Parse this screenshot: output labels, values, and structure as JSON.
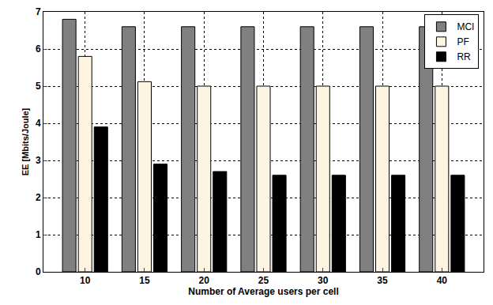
{
  "chart_data": {
    "type": "bar",
    "x_label": "Number of Average users per cell",
    "y_label": "EE [Mbits/Joule]",
    "categories": [
      "10",
      "15",
      "20",
      "25",
      "30",
      "35",
      "40"
    ],
    "series": [
      {
        "name": "MCI",
        "color": "#808080",
        "values": [
          6.8,
          6.6,
          6.6,
          6.6,
          6.6,
          6.6,
          6.6
        ]
      },
      {
        "name": "PF",
        "color": "#fdf5e1",
        "values": [
          5.8,
          5.12,
          5.0,
          5.0,
          5.0,
          5.0,
          5.0
        ]
      },
      {
        "name": "RR",
        "color": "#000000",
        "values": [
          3.9,
          2.9,
          2.7,
          2.6,
          2.6,
          2.6,
          2.6
        ]
      }
    ],
    "ylim": [
      0,
      7
    ],
    "yticks": [
      0,
      1,
      2,
      3,
      4,
      5,
      6,
      7
    ],
    "grid": true,
    "legend": "top-right"
  }
}
